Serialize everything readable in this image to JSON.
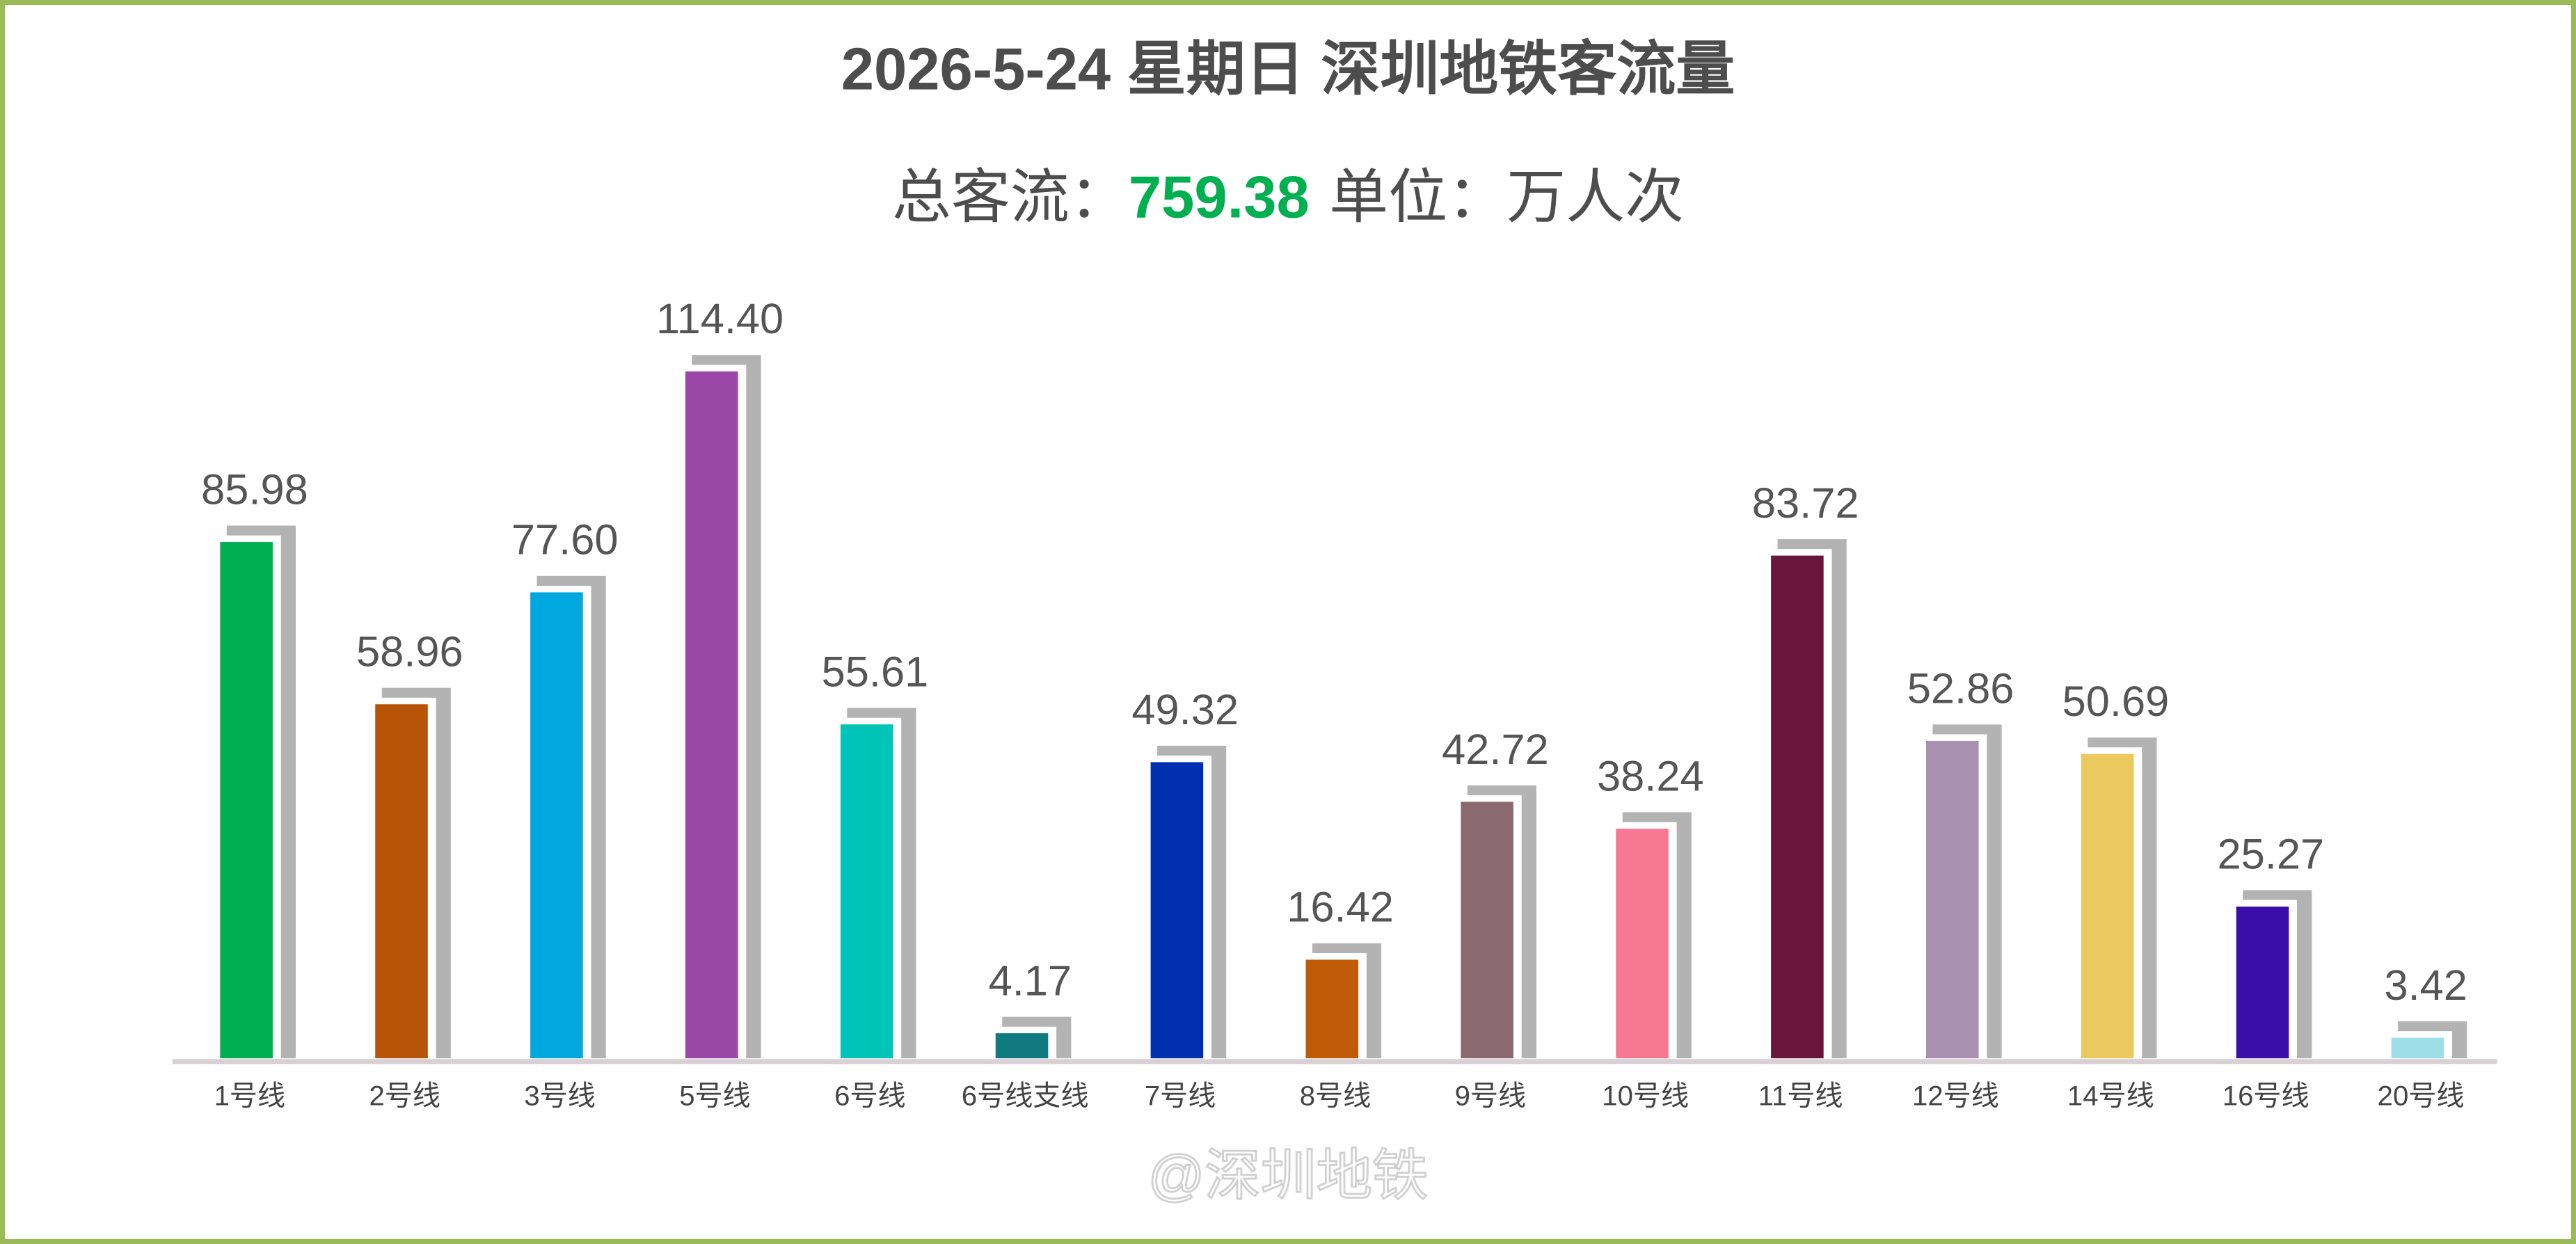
{
  "chart_data": {
    "type": "bar",
    "title": "2026-5-24 星期日 深圳地铁客流量",
    "total_label": "总客流：",
    "total": 759.38,
    "unit_label": "单位：万人次",
    "watermark": "@深圳地铁",
    "categories": [
      "1号线",
      "2号线",
      "3号线",
      "5号线",
      "6号线",
      "6号线支线",
      "7号线",
      "8号线",
      "9号线",
      "10号线",
      "11号线",
      "12号线",
      "14号线",
      "16号线",
      "20号线"
    ],
    "values": [
      85.98,
      58.96,
      77.6,
      114.4,
      55.61,
      4.17,
      49.32,
      16.42,
      42.72,
      38.24,
      83.72,
      52.86,
      50.69,
      25.27,
      3.42
    ],
    "value_labels": [
      "85.98",
      "58.96",
      "77.60",
      "114.40",
      "55.61",
      "4.17",
      "49.32",
      "16.42",
      "42.72",
      "38.24",
      "83.72",
      "52.86",
      "50.69",
      "25.27",
      "3.42"
    ],
    "colors": [
      "#00b050",
      "#b85407",
      "#00a8e0",
      "#9b47a8",
      "#00c4b8",
      "#107a80",
      "#0030b0",
      "#bf5a06",
      "#8a6a70",
      "#f77892",
      "#69163e",
      "#a891b0",
      "#ecc95f",
      "#3a0ea8",
      "#9ddfe6"
    ]
  }
}
